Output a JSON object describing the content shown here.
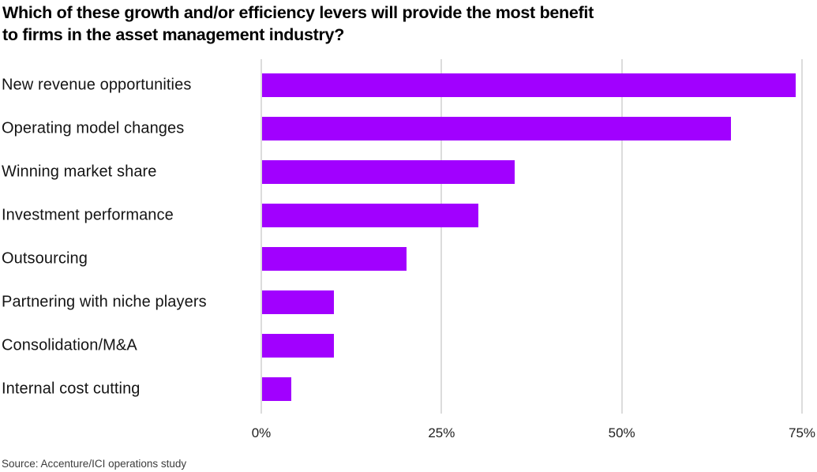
{
  "title": "Which of these growth and/or efficiency levers will provide the most benefit\nto firms in the asset management industry?",
  "source": "Source: Accenture/ICI operations study",
  "chart_data": {
    "type": "bar",
    "orientation": "horizontal",
    "title": "Which of these growth and/or efficiency levers will provide the most benefit to firms in the asset management industry?",
    "categories": [
      "New revenue opportunities",
      "Operating model changes",
      "Winning market share",
      "Investment performance",
      "Outsourcing",
      "Partnering with niche players",
      "Consolidation/M&A",
      "Internal cost cutting"
    ],
    "values": [
      74,
      65,
      35,
      30,
      20,
      10,
      10,
      4
    ],
    "unit": "%",
    "xlabel": "",
    "ylabel": "",
    "xlim": [
      0,
      75
    ],
    "x_tick_labels": [
      "0%",
      "25%",
      "50%",
      "75%"
    ],
    "x_tick_values": [
      0,
      25,
      50,
      75
    ],
    "grid": "vertical-only",
    "legend": "none",
    "colors": {
      "bar": "#A100FF",
      "gridline": "#dcdcdc",
      "title_text": "#000000",
      "label_text": "#141414",
      "tick_text": "#1f1f1f",
      "source_text": "#3c3c3c",
      "background": "#ffffff"
    }
  }
}
